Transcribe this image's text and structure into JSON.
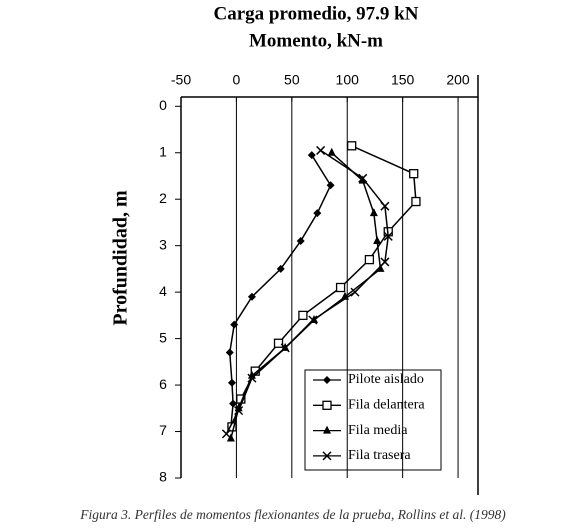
{
  "chart_data": {
    "type": "line",
    "title": "Carga promedio, 97.9 kN",
    "x_label": "Momento, kN-m",
    "y_label": "Profundidad, m",
    "caption": "Figura 3. Perfiles de momentos flexionantes de la prueba, Rollins et al. (1998)",
    "xlim": [
      -50,
      218
    ],
    "xticks": [
      -50,
      0,
      50,
      100,
      150,
      200
    ],
    "ylim": [
      -0.2,
      8
    ],
    "yticks": [
      0,
      1,
      2,
      3,
      4,
      5,
      6,
      7,
      8
    ],
    "y_inverted": true,
    "grid": true,
    "legend": "lower right",
    "series": [
      {
        "name": "Pilote aislado",
        "color": "#000000",
        "marker": "diamond",
        "values": [
          68,
          85,
          73,
          58,
          40,
          14,
          -2,
          -6,
          -4,
          -3,
          -5
        ],
        "depth": [
          1.05,
          1.7,
          2.3,
          2.9,
          3.5,
          4.1,
          4.7,
          5.3,
          5.95,
          6.4,
          6.9
        ]
      },
      {
        "name": "Fila delantera",
        "color": "#000000",
        "marker": "square",
        "values": [
          104,
          160,
          162,
          137,
          120,
          94,
          60,
          38,
          17,
          4,
          -4
        ],
        "depth": [
          0.85,
          1.45,
          2.05,
          2.7,
          3.3,
          3.9,
          4.5,
          5.1,
          5.7,
          6.3,
          6.9
        ]
      },
      {
        "name": "Fila media",
        "color": "#000000",
        "marker": "triangle",
        "values": [
          86,
          114,
          124,
          127,
          130,
          98,
          70,
          44,
          14,
          2,
          -5
        ],
        "depth": [
          1.0,
          1.6,
          2.3,
          2.9,
          3.5,
          4.1,
          4.6,
          5.2,
          5.8,
          6.5,
          7.15
        ]
      },
      {
        "name": "Fila trasera",
        "color": "#000000",
        "marker": "x",
        "values": [
          76,
          114,
          134,
          137,
          134,
          107,
          69,
          44,
          14,
          2,
          -9
        ],
        "depth": [
          0.95,
          1.55,
          2.15,
          2.8,
          3.35,
          4.0,
          4.6,
          5.2,
          5.85,
          6.55,
          7.05
        ]
      }
    ]
  }
}
